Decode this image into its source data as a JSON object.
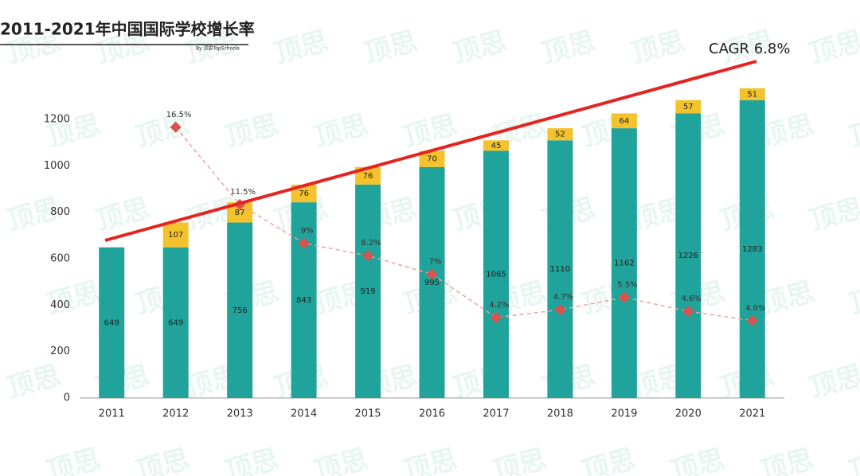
{
  "chart_data": {
    "type": "bar",
    "stacked": true,
    "title": "2011-2021年中国国际学校增长率",
    "subtitle": "By 顶思TopSchools",
    "watermark": "顶思",
    "annotation": "CAGR 6.8%",
    "categories": [
      "2011",
      "2012",
      "2013",
      "2014",
      "2015",
      "2016",
      "2017",
      "2018",
      "2019",
      "2020",
      "2021"
    ],
    "series": [
      {
        "color": "#1fa39a",
        "values": [
          649,
          649,
          756,
          843,
          919,
          995,
          1065,
          1110,
          1162,
          1226,
          1283
        ]
      },
      {
        "color": "#f3c22d",
        "values": [
          null,
          107,
          87,
          76,
          76,
          70,
          45,
          52,
          64,
          57,
          51
        ]
      },
      {
        "type": "line",
        "axis": "y2",
        "color": "#d9534f",
        "values": [
          null,
          16.5,
          11.5,
          9,
          8.2,
          7,
          4.2,
          4.7,
          5.5,
          4.6,
          4.0
        ],
        "value_labels": [
          null,
          "16.5%",
          "11.5%",
          "9%",
          "8.2%",
          "7%",
          "4.2%",
          "4.7%",
          "5.5%",
          "4.6%",
          "4.0%"
        ]
      }
    ],
    "ylim": [
      0,
      1400
    ],
    "yticks": [
      0,
      200,
      400,
      600,
      800,
      1000,
      1200
    ],
    "y2lim": [
      -1,
      20
    ]
  }
}
